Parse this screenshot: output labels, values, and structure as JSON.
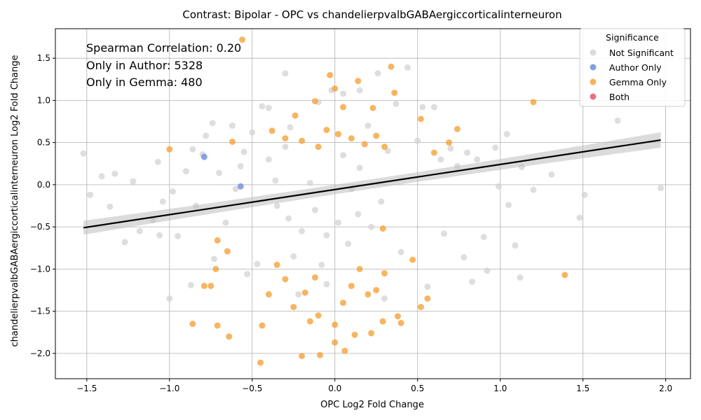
{
  "chart_data": {
    "type": "scatter",
    "title": "Contrast: Bipolar - OPC vs chandelierpvalbGABAergiccorticalinterneuron",
    "xlabel": "OPC Log2 Fold Change",
    "ylabel": "chandelierpvalbGABAergiccorticalinterneuron Log2 Fold Change",
    "xlim": [
      -1.69,
      2.15
    ],
    "ylim": [
      -2.3,
      1.85
    ],
    "xticks": [
      -1.5,
      -1.0,
      -0.5,
      0.0,
      0.5,
      1.0,
      1.5,
      2.0
    ],
    "xtick_labels": [
      "−1.5",
      "−1.0",
      "−0.5",
      "0.0",
      "0.5",
      "1.0",
      "1.5",
      "2.0"
    ],
    "yticks": [
      -2.0,
      -1.5,
      -1.0,
      -0.5,
      0.0,
      0.5,
      1.0,
      1.5
    ],
    "ytick_labels": [
      "−2.0",
      "−1.5",
      "−1.0",
      "−0.5",
      "0.0",
      "0.5",
      "1.0",
      "1.5"
    ],
    "grid": true,
    "annotations": [
      "Spearman Correlation: 0.20",
      "Only in Author: 5328",
      "Only in Gemma: 480"
    ],
    "legend": {
      "title": "Significance",
      "position": "top-right",
      "entries": [
        {
          "label": "Not Significant",
          "color": "#d3d3d3"
        },
        {
          "label": "Author Only",
          "color": "#6f8fd8"
        },
        {
          "label": "Gemma Only",
          "color": "#f5a33a"
        },
        {
          "label": "Both",
          "color": "#e05a70"
        }
      ]
    },
    "regression_line": {
      "x": [
        -1.52,
        1.97
      ],
      "y": [
        -0.51,
        0.53
      ],
      "color": "#000000"
    },
    "series": [
      {
        "name": "Not Significant",
        "color": "#d3d3d3",
        "points": [
          [
            -1.52,
            0.37
          ],
          [
            -1.48,
            -0.12
          ],
          [
            -1.41,
            0.1
          ],
          [
            -1.36,
            -0.26
          ],
          [
            -1.33,
            0.13
          ],
          [
            -1.27,
            -0.68
          ],
          [
            -1.22,
            0.04
          ],
          [
            -1.18,
            -0.55
          ],
          [
            -1.1,
            -0.42
          ],
          [
            -1.07,
            0.27
          ],
          [
            -1.06,
            -0.6
          ],
          [
            -1.04,
            -0.2
          ],
          [
            -1.0,
            -1.35
          ],
          [
            -0.98,
            -0.08
          ],
          [
            -0.95,
            -0.61
          ],
          [
            -0.9,
            0.16
          ],
          [
            -0.87,
            -1.19
          ],
          [
            -0.86,
            0.42
          ],
          [
            -0.84,
            -0.25
          ],
          [
            -0.8,
            0.36
          ],
          [
            -0.78,
            0.58
          ],
          [
            -0.74,
            0.73
          ],
          [
            -0.73,
            -0.88
          ],
          [
            -0.7,
            0.14
          ],
          [
            -0.66,
            -0.45
          ],
          [
            -0.62,
            0.7
          ],
          [
            -0.6,
            -0.05
          ],
          [
            -0.57,
            0.22
          ],
          [
            -0.55,
            0.39
          ],
          [
            -0.53,
            -1.06
          ],
          [
            -0.5,
            0.62
          ],
          [
            -0.47,
            -0.94
          ],
          [
            -0.44,
            0.93
          ],
          [
            -0.4,
            0.91
          ],
          [
            -0.36,
            0.05
          ],
          [
            -0.3,
            1.32
          ],
          [
            -0.27,
            0.68
          ],
          [
            -0.22,
            -1.3
          ],
          [
            -0.15,
            0.02
          ],
          [
            -0.1,
            0.98
          ],
          [
            -0.05,
            -1.18
          ],
          [
            -0.02,
            1.12
          ],
          [
            0.05,
            1.08
          ],
          [
            0.1,
            -0.05
          ],
          [
            0.15,
            1.12
          ],
          [
            0.2,
            0.7
          ],
          [
            0.26,
            1.32
          ],
          [
            0.3,
            -1.35
          ],
          [
            0.37,
            0.96
          ],
          [
            0.44,
            1.39
          ],
          [
            0.5,
            0.52
          ],
          [
            0.53,
            0.92
          ],
          [
            0.56,
            -1.21
          ],
          [
            0.6,
            0.92
          ],
          [
            0.64,
            0.3
          ],
          [
            0.66,
            -0.58
          ],
          [
            0.7,
            0.43
          ],
          [
            0.74,
            0.22
          ],
          [
            0.78,
            -0.86
          ],
          [
            0.8,
            0.38
          ],
          [
            0.83,
            -1.15
          ],
          [
            0.86,
            0.3
          ],
          [
            0.9,
            -0.62
          ],
          [
            0.92,
            -1.02
          ],
          [
            0.97,
            0.44
          ],
          [
            0.99,
            -0.02
          ],
          [
            1.04,
            0.6
          ],
          [
            1.05,
            -0.24
          ],
          [
            1.09,
            -0.72
          ],
          [
            1.12,
            -1.1
          ],
          [
            1.13,
            0.21
          ],
          [
            1.2,
            -0.06
          ],
          [
            1.31,
            0.12
          ],
          [
            1.48,
            -0.39
          ],
          [
            1.51,
            -0.12
          ],
          [
            1.71,
            0.76
          ],
          [
            1.97,
            -0.04
          ],
          [
            -0.35,
            -0.25
          ],
          [
            -0.28,
            -0.4
          ],
          [
            -0.2,
            -0.55
          ],
          [
            -0.12,
            -0.3
          ],
          [
            -0.05,
            -0.6
          ],
          [
            0.02,
            -0.45
          ],
          [
            0.08,
            -0.7
          ],
          [
            0.14,
            -0.35
          ],
          [
            0.22,
            -0.5
          ],
          [
            0.28,
            -0.2
          ],
          [
            -0.4,
            0.3
          ],
          [
            -0.3,
            0.45
          ],
          [
            0.05,
            0.35
          ],
          [
            0.15,
            0.2
          ],
          [
            0.32,
            0.4
          ],
          [
            0.4,
            -0.8
          ],
          [
            -0.25,
            -0.85
          ],
          [
            -0.08,
            -0.95
          ]
        ]
      },
      {
        "name": "Author Only",
        "color": "#6f8fd8",
        "points": [
          [
            -0.79,
            0.33
          ],
          [
            -0.57,
            -0.02
          ]
        ]
      },
      {
        "name": "Gemma Only",
        "color": "#f5a33a",
        "points": [
          [
            -0.56,
            1.72
          ],
          [
            -0.03,
            1.3
          ],
          [
            0.34,
            1.4
          ],
          [
            0.36,
            1.09
          ],
          [
            0.14,
            1.23
          ],
          [
            0.0,
            1.14
          ],
          [
            -0.12,
            0.99
          ],
          [
            0.05,
            0.92
          ],
          [
            0.23,
            0.91
          ],
          [
            0.52,
            0.78
          ],
          [
            1.2,
            0.98
          ],
          [
            0.74,
            0.66
          ],
          [
            -1.0,
            0.42
          ],
          [
            -0.62,
            0.51
          ],
          [
            -0.38,
            0.64
          ],
          [
            -0.24,
            0.82
          ],
          [
            0.6,
            0.38
          ],
          [
            0.69,
            0.5
          ],
          [
            -0.71,
            -0.66
          ],
          [
            -0.65,
            -0.79
          ],
          [
            -0.72,
            -1.0
          ],
          [
            -0.75,
            -1.2
          ],
          [
            -0.79,
            -1.2
          ],
          [
            -0.86,
            -1.65
          ],
          [
            -0.71,
            -1.67
          ],
          [
            -0.64,
            -1.8
          ],
          [
            -0.44,
            -1.67
          ],
          [
            -0.45,
            -2.11
          ],
          [
            -0.2,
            -2.03
          ],
          [
            -0.09,
            -2.02
          ],
          [
            0.06,
            -1.97
          ],
          [
            0.0,
            -1.87
          ],
          [
            0.0,
            -1.66
          ],
          [
            -0.1,
            -1.55
          ],
          [
            0.12,
            -1.78
          ],
          [
            0.22,
            -1.76
          ],
          [
            0.29,
            -1.62
          ],
          [
            0.38,
            -1.56
          ],
          [
            0.4,
            -1.64
          ],
          [
            0.52,
            -1.45
          ],
          [
            0.56,
            -1.35
          ],
          [
            1.39,
            -1.07
          ],
          [
            0.47,
            -0.89
          ],
          [
            0.29,
            -0.52
          ],
          [
            -0.3,
            -1.12
          ],
          [
            -0.25,
            -1.45
          ],
          [
            -0.18,
            -1.28
          ],
          [
            -0.12,
            -1.1
          ],
          [
            0.1,
            -1.2
          ],
          [
            0.2,
            -1.3
          ],
          [
            0.3,
            -1.05
          ],
          [
            -0.4,
            -1.3
          ],
          [
            -0.35,
            -0.95
          ],
          [
            0.05,
            -1.4
          ],
          [
            0.15,
            -1.0
          ],
          [
            -0.15,
            -1.62
          ],
          [
            0.25,
            -1.25
          ],
          [
            -0.05,
            0.65
          ],
          [
            0.02,
            0.6
          ],
          [
            0.1,
            0.55
          ],
          [
            -0.1,
            0.45
          ],
          [
            -0.2,
            0.52
          ],
          [
            0.18,
            0.48
          ],
          [
            0.25,
            0.58
          ],
          [
            -0.3,
            0.55
          ],
          [
            0.3,
            0.45
          ]
        ]
      },
      {
        "name": "Both",
        "color": "#e05a70",
        "points": []
      }
    ]
  }
}
